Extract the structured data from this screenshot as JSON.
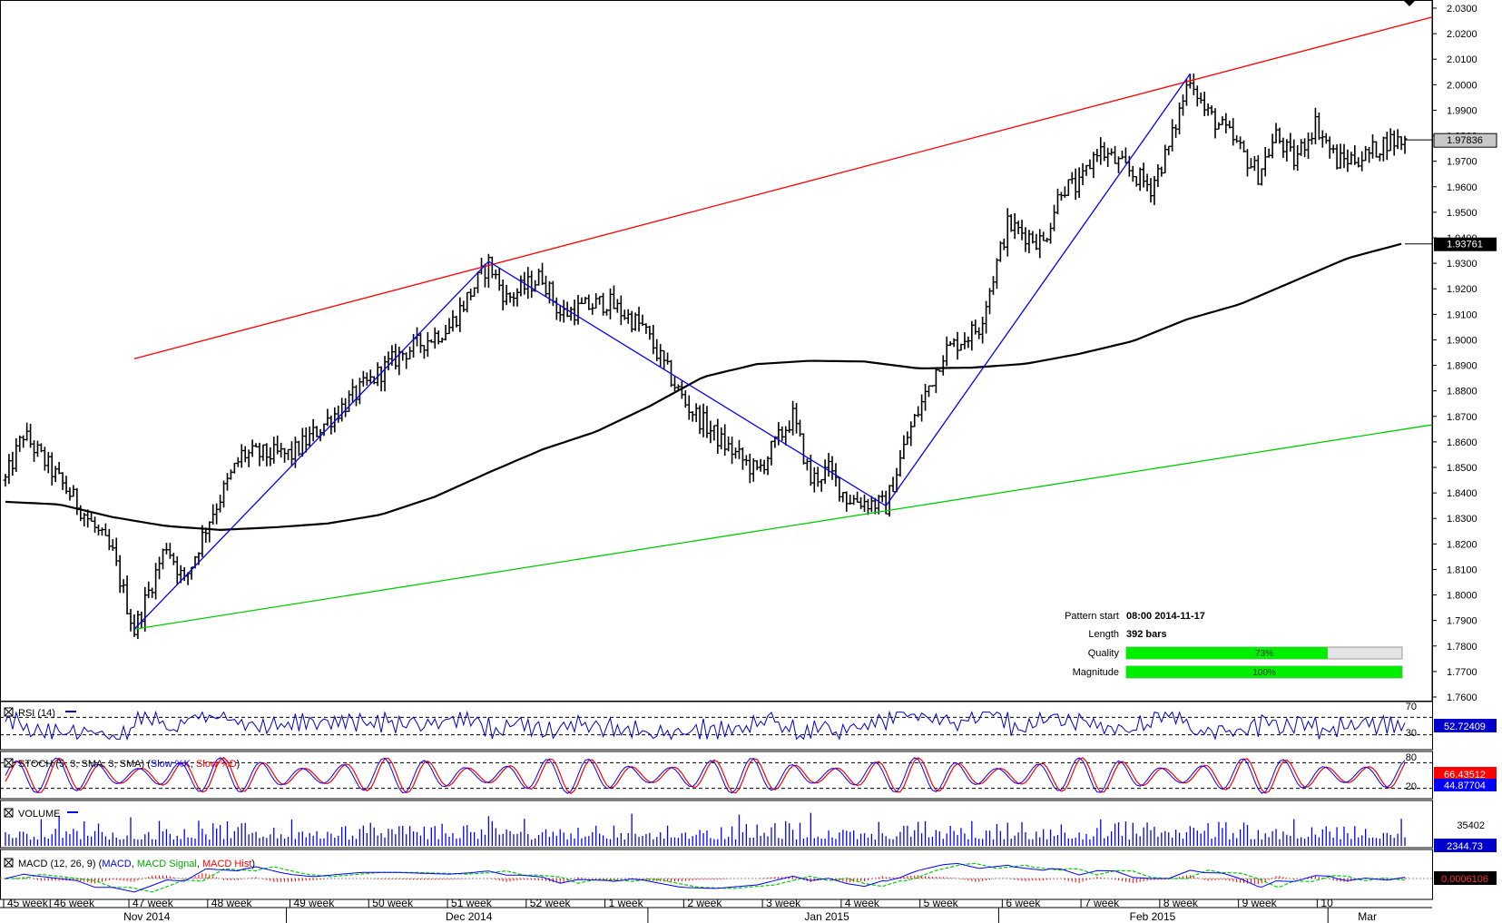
{
  "chart_data": {
    "type": "ohlc",
    "pattern": "ascending channel",
    "price_axis": {
      "min": 1.76,
      "max": 2.03,
      "step": 0.01,
      "ticks": [
        "2.0300",
        "2.0200",
        "2.0100",
        "2.0000",
        "1.9900",
        "1.9800",
        "1.9700",
        "1.9600",
        "1.9500",
        "1.9400",
        "1.9300",
        "1.9200",
        "1.9100",
        "1.9000",
        "1.8900",
        "1.8800",
        "1.8700",
        "1.8600",
        "1.8500",
        "1.8400",
        "1.8300",
        "1.8200",
        "1.8100",
        "1.8000",
        "1.7900",
        "1.7800",
        "1.7700",
        "1.7600"
      ],
      "last_price": 1.97836,
      "last_price_label": "1.97836",
      "ma_value": 1.93761,
      "ma_label": "1.93761"
    },
    "time_axis": {
      "n_bars": 392,
      "week_labels": [
        "45 week",
        "46 week",
        "47 week",
        "48 week",
        "49 week",
        "50 week",
        "51 week",
        "52 week",
        "1 week",
        "2 week",
        "3 week",
        "4 week",
        "5 week",
        "6 week",
        "7 week",
        "8 week",
        "9 week",
        "10"
      ],
      "week_starts": [
        0,
        13,
        35,
        57,
        80,
        102,
        124,
        146,
        168,
        190,
        212,
        234,
        256,
        279,
        301,
        323,
        345,
        367
      ],
      "month_labels": [
        "Nov 2014",
        "Dec 2014",
        "Jan 2015",
        "Feb 2015",
        "Mar"
      ],
      "month_centers": [
        40,
        130,
        230,
        321,
        381
      ],
      "month_dividers": [
        79,
        180,
        278,
        370
      ]
    },
    "channel": {
      "resistance": {
        "x": [
          36,
          392
        ],
        "y": [
          1.8926,
          2.0265
        ],
        "color": "#ff0000"
      },
      "support": {
        "x": [
          36,
          392
        ],
        "y": [
          1.7866,
          1.8667
        ],
        "color": "#00cc00"
      }
    },
    "zigzag": {
      "x": [
        36,
        135,
        246,
        331
      ],
      "y": [
        1.7866,
        1.9307,
        1.8349,
        2.0043
      ],
      "color": "#0000ff"
    },
    "moving_average": {
      "x": [
        0,
        15,
        30,
        45,
        60,
        75,
        90,
        105,
        120,
        135,
        150,
        165,
        180,
        195,
        210,
        225,
        240,
        255,
        270,
        285,
        300,
        315,
        330,
        345,
        360,
        375,
        390
      ],
      "y": [
        1.8365,
        1.8355,
        1.8305,
        1.827,
        1.8255,
        1.8265,
        1.828,
        1.8315,
        1.8385,
        1.848,
        1.857,
        1.864,
        1.874,
        1.8855,
        1.8905,
        1.8918,
        1.8915,
        1.8888,
        1.8891,
        1.8906,
        1.8945,
        1.8995,
        1.908,
        1.914,
        1.923,
        1.932,
        1.9376
      ],
      "color": "#000000"
    },
    "price_anchors": {
      "x": [
        0,
        5,
        20,
        30,
        36,
        45,
        50,
        57,
        66,
        80,
        95,
        110,
        124,
        135,
        140,
        150,
        155,
        168,
        178,
        190,
        200,
        210,
        220,
        225,
        230,
        235,
        246,
        252,
        262,
        272,
        280,
        290,
        295,
        300,
        305,
        315,
        320,
        325,
        331,
        335,
        342,
        350,
        355,
        360,
        366,
        372,
        380,
        386
      ],
      "y": [
        1.845,
        1.863,
        1.836,
        1.816,
        1.786,
        1.82,
        1.805,
        1.83,
        1.855,
        1.855,
        1.875,
        1.894,
        1.905,
        1.93,
        1.916,
        1.925,
        1.91,
        1.915,
        1.905,
        1.875,
        1.86,
        1.848,
        1.87,
        1.845,
        1.849,
        1.838,
        1.835,
        1.862,
        1.895,
        1.905,
        1.945,
        1.938,
        1.96,
        1.96,
        1.975,
        1.965,
        1.96,
        1.975,
        2.004,
        1.99,
        1.98,
        1.965,
        1.98,
        1.97,
        1.985,
        1.97,
        1.972,
        1.978
      ]
    },
    "pattern_info": {
      "pattern_start_label": "Pattern start",
      "pattern_start": "08:00 2014-11-17",
      "length_label": "Length",
      "length": "392 bars",
      "quality_label": "Quality",
      "quality_pct": 73,
      "quality_text": "73%",
      "magnitude_label": "Magnitude",
      "magnitude_pct": 100,
      "magnitude_text": "100%",
      "bar_color": "#00ee00"
    },
    "indicators": {
      "rsi": {
        "label": "RSI (14)",
        "levels": [
          70,
          30
        ],
        "level_labels": [
          "70",
          "30"
        ],
        "value": 52.72409,
        "value_label": "52.72409",
        "color": "#0000cc"
      },
      "stoch": {
        "label_prefix": "STOCH (5, 3, SMA, 3, SMA) (",
        "k_label": "Slow %K",
        "d_label": "Slow %D",
        "label_suffix": ")",
        "levels": [
          80,
          20
        ],
        "level_labels": [
          "80",
          "20"
        ],
        "k_value": 66.43512,
        "k_value_label": "66.43512",
        "d_value": 44.87704,
        "d_value_label": "44.87704",
        "k_color": "#0000ff",
        "d_color": "#ff0000"
      },
      "volume": {
        "label": "VOLUME",
        "max_tick": 35402,
        "max_tick_label": "35402",
        "value": 2344.73,
        "value_label": "2344.73",
        "color": "#0000ff"
      },
      "macd": {
        "label_prefix": "MACD (12, 26, 9) (",
        "macd_label": "MACD",
        "signal_label": "MACD Signal",
        "hist_label": "MACD Hist",
        "label_suffix": ")",
        "value": 0.0006106,
        "value_label": "0.0006106",
        "macd_color": "#0000ff",
        "signal_color": "#00cc00",
        "hist_color": "#ff0000"
      }
    },
    "colors": {
      "badge_last_price": "#c8c8c8",
      "badge_ma": "#000000",
      "badge_indicator": "#0000cc"
    }
  }
}
